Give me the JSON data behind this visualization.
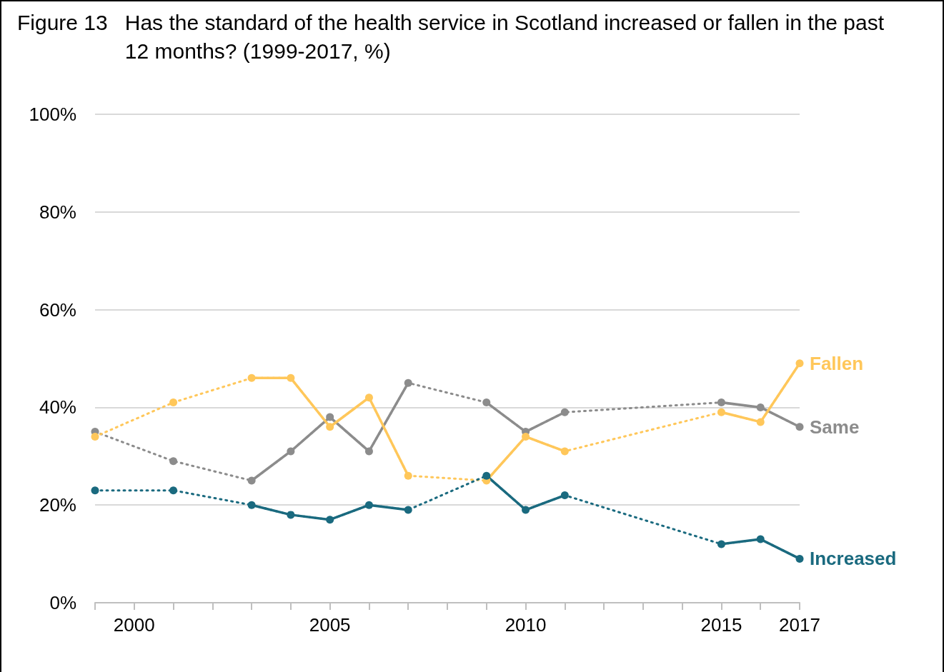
{
  "chart_data": {
    "type": "line",
    "title": "Figure 13",
    "subtitle": "Has the standard of the health service in Scotland increased or fallen in the past 12 months? (1999-2017, %)",
    "xlim": [
      1999,
      2017
    ],
    "xticks": [
      {
        "value": 1999,
        "label": null
      },
      2000,
      {
        "value": 2001,
        "label": null
      },
      {
        "value": 2002,
        "label": null
      },
      {
        "value": 2003,
        "label": null
      },
      {
        "value": 2004,
        "label": null
      },
      2005,
      {
        "value": 2006,
        "label": null
      },
      {
        "value": 2007,
        "label": null
      },
      {
        "value": 2008,
        "label": null
      },
      {
        "value": 2009,
        "label": null
      },
      2010,
      {
        "value": 2011,
        "label": null
      },
      {
        "value": 2012,
        "label": null
      },
      {
        "value": 2013,
        "label": null
      },
      {
        "value": 2014,
        "label": null
      },
      2015,
      {
        "value": 2016,
        "label": null
      },
      2017
    ],
    "ylim": [
      0,
      100
    ],
    "yticks": [
      {
        "value": 0,
        "label": "0%"
      },
      {
        "value": 20,
        "label": "20%"
      },
      {
        "value": 40,
        "label": "40%"
      },
      {
        "value": 60,
        "label": "60%"
      },
      {
        "value": 80,
        "label": "80%"
      },
      {
        "value": 100,
        "label": "100%"
      }
    ],
    "grid": "y",
    "legend": false,
    "line_style": "solid",
    "series": [
      {
        "color": "#8c8c8c",
        "line_style": "dotted",
        "marker": "circle",
        "x": [
          1999,
          2001,
          2003,
          2004,
          2005,
          2006,
          2007,
          2009,
          2010,
          2011,
          2015,
          2016,
          2017
        ],
        "values": [
          35,
          29,
          25,
          31,
          38,
          31,
          45,
          41,
          35,
          39,
          41,
          40,
          36
        ]
      },
      {
        "color": "#ffc75a",
        "line_style": "dotted",
        "marker": "circle",
        "x": [
          1999,
          2001,
          2003,
          2004,
          2005,
          2006,
          2007,
          2009,
          2010,
          2011,
          2015,
          2016,
          2017
        ],
        "values": [
          34,
          41,
          46,
          46,
          36,
          42,
          26,
          25,
          34,
          31,
          39,
          37,
          49
        ]
      },
      {
        "color": "#1a6a7f",
        "line_style": "dotted",
        "marker": "circle",
        "x": [
          1999,
          2001,
          2003,
          2004,
          2005,
          2006,
          2007,
          2009,
          2010,
          2011,
          2015,
          2016,
          2017
        ],
        "values": [
          23,
          23,
          20,
          18,
          17,
          20,
          19,
          26,
          19,
          22,
          12,
          13,
          9
        ]
      },
      {
        "name": "Same",
        "color": "#8c8c8c",
        "x": [
          1999,
          2000,
          2001,
          2002,
          2003,
          2004,
          2005,
          2006,
          2007,
          2008,
          2009,
          2010,
          2011,
          2012,
          2013,
          2014,
          2015,
          2016,
          2017
        ],
        "values": [
          35,
          null,
          29,
          null,
          25,
          31,
          38,
          31,
          45,
          null,
          41,
          35,
          39,
          null,
          null,
          null,
          41,
          40,
          36
        ]
      },
      {
        "name": "Fallen",
        "color": "#ffc75a",
        "x": [
          1999,
          2000,
          2001,
          2002,
          2003,
          2004,
          2005,
          2006,
          2007,
          2008,
          2009,
          2010,
          2011,
          2012,
          2013,
          2014,
          2015,
          2016,
          2017
        ],
        "values": [
          34,
          null,
          41,
          null,
          46,
          46,
          36,
          42,
          26,
          null,
          25,
          34,
          31,
          null,
          null,
          null,
          39,
          37,
          49
        ]
      },
      {
        "name": "Increased",
        "color": "#1a6a7f",
        "x": [
          1999,
          2000,
          2001,
          2002,
          2003,
          2004,
          2005,
          2006,
          2007,
          2008,
          2009,
          2010,
          2011,
          2012,
          2013,
          2014,
          2015,
          2016,
          2017
        ],
        "values": [
          23,
          null,
          23,
          null,
          20,
          18,
          17,
          20,
          19,
          null,
          26,
          19,
          22,
          null,
          null,
          null,
          12,
          13,
          9
        ]
      }
    ]
  }
}
